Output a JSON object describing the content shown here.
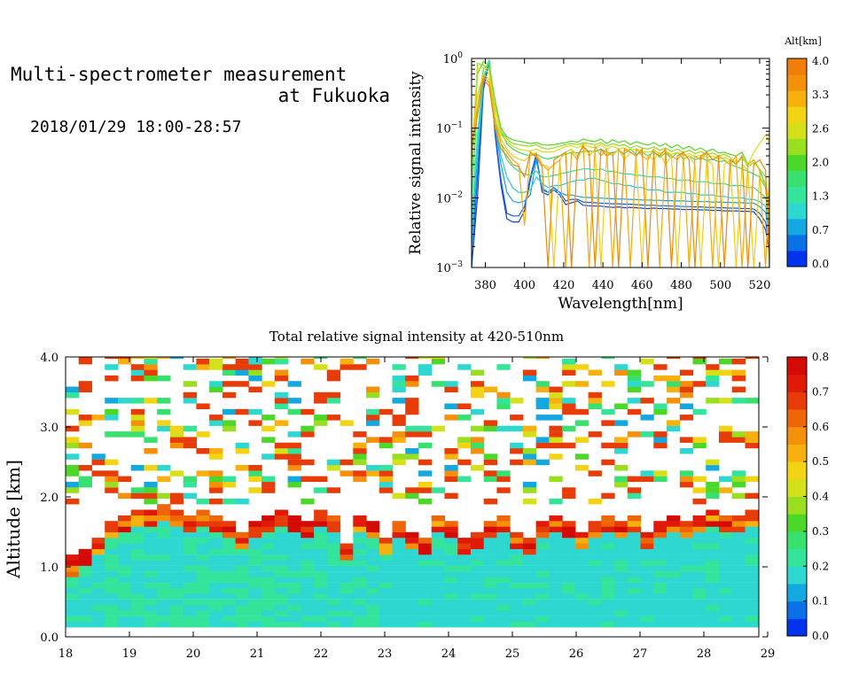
{
  "title": {
    "line1": "Multi-spectrometer measurement",
    "line2": "at Fukuoka",
    "line3": "2018/01/29 18:00-28:57"
  },
  "chart_data": [
    {
      "type": "line",
      "xlabel": "Wavelength[nm]",
      "ylabel": "Relative signal intensity",
      "xlim": [
        373,
        525
      ],
      "ylim": [
        0.001,
        1
      ],
      "yscale": "log",
      "xticks": [
        380,
        400,
        420,
        440,
        460,
        480,
        500,
        520
      ],
      "yticks": [
        {
          "value": 0.001,
          "base": "10",
          "exp": "−3"
        },
        {
          "value": 0.01,
          "base": "10",
          "exp": "−2"
        },
        {
          "value": 0.1,
          "base": "10",
          "exp": "−1"
        },
        {
          "value": 1,
          "base": "10",
          "exp": "0"
        }
      ],
      "x": [
        373,
        376,
        379,
        382,
        385,
        388,
        391,
        394,
        397,
        400,
        403,
        406,
        409,
        412,
        415,
        418,
        421,
        424,
        427,
        430,
        433,
        436,
        439,
        442,
        445,
        448,
        451,
        454,
        457,
        460,
        463,
        466,
        469,
        472,
        475,
        478,
        481,
        484,
        487,
        490,
        493,
        496,
        499,
        502,
        505,
        508,
        511,
        514,
        517,
        520,
        523,
        525
      ],
      "colorbar": {
        "label": "Alt[km]",
        "ticks": [
          "4.0",
          "3.3",
          "2.6",
          "2.0",
          "1.3",
          "0.7",
          "0.0"
        ],
        "colors": [
          "#0033ee",
          "#0a70e6",
          "#14a8e0",
          "#2ed8d0",
          "#34e49a",
          "#38e070",
          "#4cd828",
          "#9ade20",
          "#d4e018",
          "#f2d414",
          "#f8b00e",
          "#f4900a",
          "#f07e08"
        ]
      },
      "series": [
        {
          "alt": 0.0,
          "color": "#1a44d0",
          "values": [
            0.001,
            0.01,
            0.35,
            0.9,
            0.08,
            0.015,
            0.005,
            0.0045,
            0.0045,
            0.0065,
            0.018,
            0.04,
            0.012,
            0.011,
            0.013,
            0.011,
            0.008,
            0.0085,
            0.009,
            0.0078,
            0.0077,
            0.0076,
            0.0076,
            0.0074,
            0.0073,
            0.0074,
            0.0072,
            0.0073,
            0.0072,
            0.0071,
            0.007,
            0.0071,
            0.007,
            0.007,
            0.0069,
            0.0069,
            0.0068,
            0.0068,
            0.0068,
            0.0067,
            0.0067,
            0.0066,
            0.0066,
            0.0065,
            0.0065,
            0.0065,
            0.0064,
            0.0064,
            0.0063,
            0.005,
            0.0035,
            0.0016
          ]
        },
        {
          "alt": 0.3,
          "color": "#0c62e8",
          "values": [
            0.001,
            0.02,
            0.4,
            0.95,
            0.09,
            0.018,
            0.006,
            0.0055,
            0.0055,
            0.0075,
            0.02,
            0.042,
            0.013,
            0.012,
            0.014,
            0.012,
            0.009,
            0.0095,
            0.0095,
            0.0087,
            0.0086,
            0.0085,
            0.0084,
            0.0083,
            0.0082,
            0.0082,
            0.0081,
            0.0081,
            0.008,
            0.0079,
            0.0078,
            0.0078,
            0.0077,
            0.0077,
            0.0076,
            0.0076,
            0.0075,
            0.0075,
            0.0074,
            0.0074,
            0.0073,
            0.0073,
            0.0072,
            0.0072,
            0.0071,
            0.0071,
            0.007,
            0.007,
            0.0069,
            0.006,
            0.0045,
            0.0022
          ]
        },
        {
          "alt": 0.7,
          "color": "#14a0e2",
          "values": [
            0.002,
            0.03,
            0.45,
            0.95,
            0.11,
            0.03,
            0.012,
            0.009,
            0.0085,
            0.009,
            0.011,
            0.035,
            0.014,
            0.012,
            0.013,
            0.012,
            0.011,
            0.011,
            0.0105,
            0.0102,
            0.0101,
            0.01,
            0.0099,
            0.0098,
            0.0097,
            0.0096,
            0.0096,
            0.0095,
            0.0094,
            0.0093,
            0.0093,
            0.0092,
            0.0092,
            0.0091,
            0.0091,
            0.009,
            0.009,
            0.0089,
            0.0089,
            0.0088,
            0.0088,
            0.0087,
            0.0087,
            0.0086,
            0.0086,
            0.0085,
            0.0085,
            0.0084,
            0.0084,
            0.0075,
            0.0062,
            0.003
          ]
        },
        {
          "alt": 1.0,
          "color": "#28ccd6",
          "values": [
            0.003,
            0.05,
            0.5,
            0.95,
            0.12,
            0.04,
            0.02,
            0.014,
            0.012,
            0.012,
            0.013,
            0.02,
            0.016,
            0.014,
            0.015,
            0.015,
            0.016,
            0.017,
            0.018,
            0.018,
            0.019,
            0.019,
            0.018,
            0.017,
            0.016,
            0.016,
            0.015,
            0.015,
            0.014,
            0.014,
            0.013,
            0.013,
            0.013,
            0.012,
            0.012,
            0.012,
            0.012,
            0.0115,
            0.0115,
            0.011,
            0.011,
            0.011,
            0.0105,
            0.0105,
            0.01,
            0.01,
            0.01,
            0.0095,
            0.0095,
            0.0088,
            0.0076,
            0.004
          ]
        },
        {
          "alt": 1.3,
          "color": "#34e08e",
          "values": [
            0.005,
            0.08,
            0.55,
            0.9,
            0.15,
            0.06,
            0.035,
            0.028,
            0.024,
            0.022,
            0.021,
            0.024,
            0.02,
            0.02,
            0.021,
            0.022,
            0.023,
            0.024,
            0.025,
            0.026,
            0.026,
            0.025,
            0.026,
            0.024,
            0.024,
            0.023,
            0.022,
            0.022,
            0.021,
            0.021,
            0.02,
            0.02,
            0.02,
            0.019,
            0.019,
            0.018,
            0.018,
            0.018,
            0.017,
            0.017,
            0.017,
            0.016,
            0.016,
            0.016,
            0.015,
            0.015,
            0.015,
            0.014,
            0.014,
            0.012,
            0.01,
            0.006
          ]
        },
        {
          "alt": 1.7,
          "color": "#3cdc60",
          "values": [
            0.01,
            0.2,
            0.7,
            0.85,
            0.2,
            0.09,
            0.06,
            0.05,
            0.045,
            0.042,
            0.04,
            0.043,
            0.038,
            0.036,
            0.038,
            0.04,
            0.042,
            0.045,
            0.044,
            0.046,
            0.047,
            0.046,
            0.05,
            0.045,
            0.044,
            0.048,
            0.043,
            0.05,
            0.042,
            0.045,
            0.04,
            0.046,
            0.038,
            0.044,
            0.037,
            0.045,
            0.036,
            0.04,
            0.035,
            0.038,
            0.034,
            0.036,
            0.033,
            0.034,
            0.03,
            0.028,
            0.026,
            0.024,
            0.022,
            0.02,
            0.014,
            0.008
          ]
        },
        {
          "alt": 2.0,
          "color": "#5cd428",
          "values": [
            0.02,
            0.6,
            0.9,
            0.8,
            0.25,
            0.1,
            0.075,
            0.068,
            0.065,
            0.063,
            0.06,
            0.062,
            0.058,
            0.057,
            0.058,
            0.06,
            0.062,
            0.065,
            0.063,
            0.07,
            0.066,
            0.064,
            0.07,
            0.06,
            0.068,
            0.062,
            0.066,
            0.058,
            0.064,
            0.06,
            0.057,
            0.062,
            0.055,
            0.06,
            0.052,
            0.058,
            0.05,
            0.055,
            0.048,
            0.052,
            0.046,
            0.05,
            0.044,
            0.045,
            0.042,
            0.04,
            0.045,
            0.03,
            0.035,
            0.025,
            0.015,
            0.002
          ]
        },
        {
          "alt": 2.3,
          "color": "#9ad820",
          "values": [
            0.03,
            0.85,
            0.8,
            0.7,
            0.22,
            0.09,
            0.07,
            0.06,
            0.058,
            0.056,
            0.055,
            0.058,
            0.052,
            0.05,
            0.052,
            0.055,
            0.058,
            0.06,
            0.058,
            0.062,
            0.06,
            0.058,
            0.062,
            0.055,
            0.06,
            0.056,
            0.058,
            0.052,
            0.056,
            0.052,
            0.05,
            0.054,
            0.048,
            0.052,
            0.046,
            0.05,
            0.045,
            0.048,
            0.043,
            0.046,
            0.042,
            0.044,
            0.04,
            0.042,
            0.038,
            0.03,
            0.04,
            0.028,
            0.032,
            0.026,
            0.02,
            0.004
          ]
        },
        {
          "alt": 2.6,
          "color": "#d8dc18",
          "values": [
            0.04,
            0.7,
            0.75,
            0.6,
            0.2,
            0.08,
            0.065,
            0.055,
            0.05,
            0.048,
            0.047,
            0.05,
            0.046,
            0.045,
            0.046,
            0.05,
            0.054,
            0.056,
            0.052,
            0.06,
            0.054,
            0.052,
            0.058,
            0.05,
            0.055,
            0.05,
            0.052,
            0.048,
            0.05,
            0.046,
            0.045,
            0.048,
            0.043,
            0.046,
            0.042,
            0.045,
            0.04,
            0.043,
            0.039,
            0.041,
            0.038,
            0.04,
            0.036,
            0.038,
            0.035,
            0.033,
            0.036,
            0.03,
            0.045,
            0.06,
            0.08,
            0.06
          ]
        },
        {
          "alt": 3.0,
          "color": "#f4cc14",
          "values": [
            0.05,
            0.3,
            0.6,
            0.5,
            0.15,
            0.07,
            0.05,
            0.04,
            0.036,
            0.034,
            0.04,
            0.045,
            0.03,
            0.028,
            0.001,
            0.035,
            0.045,
            0.05,
            0.04,
            0.055,
            0.04,
            0.05,
            0.001,
            0.045,
            0.04,
            0.05,
            0.035,
            0.045,
            0.04,
            0.001,
            0.04,
            0.035,
            0.045,
            0.03,
            0.04,
            0.001,
            0.035,
            0.04,
            0.03,
            0.001,
            0.035,
            0.03,
            0.001,
            0.03,
            0.035,
            0.001,
            0.03,
            0.025,
            0.001,
            0.02,
            0.015,
            0.01
          ]
        },
        {
          "alt": 3.5,
          "color": "#f6a810",
          "values": [
            0.06,
            0.2,
            0.55,
            0.45,
            0.12,
            0.06,
            0.045,
            0.035,
            0.03,
            0.004,
            0.045,
            0.04,
            0.03,
            0.025,
            0.03,
            0.035,
            0.001,
            0.045,
            0.035,
            0.06,
            0.001,
            0.055,
            0.04,
            0.05,
            0.001,
            0.05,
            0.04,
            0.001,
            0.05,
            0.04,
            0.035,
            0.05,
            0.001,
            0.045,
            0.04,
            0.035,
            0.045,
            0.001,
            0.04,
            0.035,
            0.045,
            0.001,
            0.04,
            0.035,
            0.03,
            0.04,
            0.001,
            0.03,
            0.035,
            0.025,
            0.001,
            0.02
          ]
        },
        {
          "alt": 4.0,
          "color": "#ee8808",
          "values": [
            0.05,
            0.15,
            0.5,
            0.4,
            0.1,
            0.05,
            0.04,
            0.03,
            0.028,
            0.02,
            0.045,
            0.038,
            0.028,
            0.001,
            0.035,
            0.04,
            0.045,
            0.001,
            0.04,
            0.055,
            0.045,
            0.001,
            0.05,
            0.04,
            0.045,
            0.001,
            0.05,
            0.045,
            0.04,
            0.05,
            0.001,
            0.045,
            0.04,
            0.05,
            0.001,
            0.04,
            0.045,
            0.035,
            0.001,
            0.04,
            0.045,
            0.035,
            0.04,
            0.001,
            0.035,
            0.03,
            0.04,
            0.001,
            0.03,
            0.035,
            0.025,
            0.001
          ]
        }
      ]
    },
    {
      "type": "heatmap",
      "title": "Total relative signal intensity at 420-510nm",
      "xlabel": "",
      "ylabel": "Altitude [km]",
      "xlim": [
        18,
        29
      ],
      "ylim": [
        0,
        4
      ],
      "xticks": [
        "18",
        "19",
        "20",
        "21",
        "22",
        "23",
        "24",
        "25",
        "26",
        "27",
        "28",
        "29"
      ],
      "yticks": [
        "0.0",
        "1.0",
        "2.0",
        "3.0",
        "4.0"
      ],
      "colorbar": {
        "ticks": [
          "0.8",
          "0.7",
          "0.6",
          "0.5",
          "0.4",
          "0.3",
          "0.2",
          "0.1",
          "0.0"
        ],
        "range": [
          0,
          0.8
        ],
        "colors": [
          "#0033ee",
          "#0a70e6",
          "#14a8e0",
          "#2ed8d0",
          "#34e49a",
          "#38e070",
          "#4cd828",
          "#9ade20",
          "#d4e018",
          "#f2d414",
          "#f8b00e",
          "#f4900a",
          "#ee6608",
          "#e83c08",
          "#e01a06",
          "#d40a04"
        ]
      },
      "boundary_layer_top_km": [
        1.0,
        1.1,
        1.3,
        1.5,
        1.6,
        1.7,
        1.7,
        1.8,
        1.7,
        1.6,
        1.7,
        1.6,
        1.5,
        1.4,
        1.5,
        1.6,
        1.7,
        1.6,
        1.5,
        1.7,
        1.6,
        1.2,
        1.6,
        1.5,
        1.3,
        1.5,
        1.4,
        1.3,
        1.6,
        1.5,
        1.3,
        1.4,
        1.5,
        1.6,
        1.4,
        1.3,
        1.5,
        1.6,
        1.5,
        1.4,
        1.5,
        1.6,
        1.5,
        1.6,
        1.4,
        1.5,
        1.6,
        1.5,
        1.6,
        1.7,
        1.6,
        1.6,
        1.7
      ],
      "cloud_base_km": 1.9,
      "cloud_top_km": 4.0,
      "lower_layer_value": 0.2,
      "cloud_value": 0.35
    }
  ]
}
